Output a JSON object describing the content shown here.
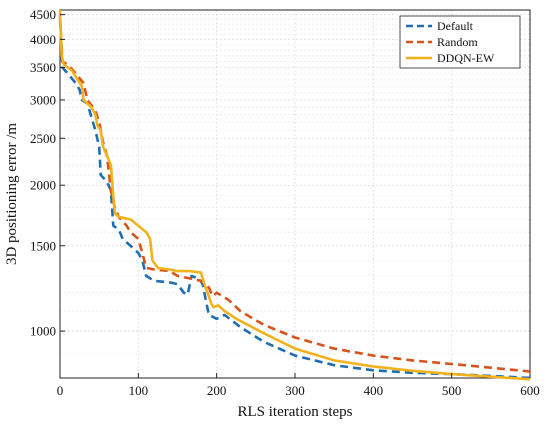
{
  "chart_data": {
    "type": "line",
    "title": "",
    "xlabel": "RLS iteration steps",
    "ylabel": "3D positioning error /m",
    "xlim": [
      0,
      600
    ],
    "ylim": [
      800,
      4600
    ],
    "yscale": "log",
    "grid": true,
    "legend_position": "top-right",
    "x_ticks": [
      0,
      100,
      200,
      300,
      400,
      500,
      600
    ],
    "x_tick_labels": [
      "0",
      "100",
      "200",
      "300",
      "400",
      "500",
      "600"
    ],
    "y_ticks": [
      1000,
      1500,
      2000,
      2500,
      3000,
      3500,
      4000,
      4500
    ],
    "y_tick_labels": [
      "1000",
      "1500",
      "2000",
      "2500",
      "3000",
      "3500",
      "4000",
      "4500"
    ],
    "series": [
      {
        "name": "Default",
        "color": "#1f6eb4",
        "style": "dashed",
        "points": [
          [
            0,
            4500
          ],
          [
            3,
            3500
          ],
          [
            10,
            3400
          ],
          [
            20,
            3250
          ],
          [
            25,
            3150
          ],
          [
            28,
            3000
          ],
          [
            35,
            2950
          ],
          [
            45,
            2600
          ],
          [
            50,
            2400
          ],
          [
            52,
            2100
          ],
          [
            58,
            2050
          ],
          [
            62,
            2000
          ],
          [
            65,
            1950
          ],
          [
            68,
            1650
          ],
          [
            75,
            1620
          ],
          [
            80,
            1550
          ],
          [
            90,
            1500
          ],
          [
            100,
            1450
          ],
          [
            105,
            1400
          ],
          [
            110,
            1300
          ],
          [
            120,
            1270
          ],
          [
            140,
            1260
          ],
          [
            150,
            1250
          ],
          [
            158,
            1200
          ],
          [
            163,
            1190
          ],
          [
            168,
            1300
          ],
          [
            178,
            1280
          ],
          [
            182,
            1250
          ],
          [
            190,
            1080
          ],
          [
            200,
            1060
          ],
          [
            210,
            1080
          ],
          [
            230,
            1020
          ],
          [
            260,
            950
          ],
          [
            300,
            890
          ],
          [
            350,
            850
          ],
          [
            400,
            830
          ],
          [
            450,
            820
          ],
          [
            500,
            815
          ],
          [
            550,
            808
          ],
          [
            600,
            800
          ]
        ]
      },
      {
        "name": "Random",
        "color": "#d9541a",
        "style": "dashed",
        "points": [
          [
            0,
            4400
          ],
          [
            3,
            3600
          ],
          [
            10,
            3550
          ],
          [
            20,
            3400
          ],
          [
            30,
            3250
          ],
          [
            35,
            3000
          ],
          [
            45,
            2850
          ],
          [
            50,
            2700
          ],
          [
            55,
            2450
          ],
          [
            60,
            2300
          ],
          [
            65,
            1950
          ],
          [
            70,
            1800
          ],
          [
            75,
            1720
          ],
          [
            85,
            1650
          ],
          [
            90,
            1600
          ],
          [
            100,
            1550
          ],
          [
            105,
            1450
          ],
          [
            110,
            1350
          ],
          [
            120,
            1340
          ],
          [
            140,
            1330
          ],
          [
            150,
            1300
          ],
          [
            160,
            1290
          ],
          [
            170,
            1280
          ],
          [
            180,
            1270
          ],
          [
            190,
            1230
          ],
          [
            195,
            1180
          ],
          [
            200,
            1200
          ],
          [
            215,
            1160
          ],
          [
            230,
            1100
          ],
          [
            260,
            1030
          ],
          [
            300,
            970
          ],
          [
            350,
            920
          ],
          [
            400,
            890
          ],
          [
            450,
            870
          ],
          [
            500,
            855
          ],
          [
            550,
            840
          ],
          [
            600,
            825
          ]
        ]
      },
      {
        "name": "DDQN-EW",
        "color": "#f2b21e",
        "style": "solid",
        "points": [
          [
            0,
            4600
          ],
          [
            2,
            3700
          ],
          [
            5,
            3550
          ],
          [
            15,
            3450
          ],
          [
            20,
            3350
          ],
          [
            28,
            3200
          ],
          [
            30,
            3000
          ],
          [
            40,
            2900
          ],
          [
            45,
            2800
          ],
          [
            48,
            2650
          ],
          [
            52,
            2600
          ],
          [
            55,
            2400
          ],
          [
            60,
            2300
          ],
          [
            65,
            2200
          ],
          [
            68,
            1900
          ],
          [
            70,
            1750
          ],
          [
            75,
            1720
          ],
          [
            90,
            1700
          ],
          [
            100,
            1650
          ],
          [
            110,
            1600
          ],
          [
            115,
            1550
          ],
          [
            118,
            1400
          ],
          [
            125,
            1350
          ],
          [
            140,
            1340
          ],
          [
            150,
            1330
          ],
          [
            165,
            1330
          ],
          [
            180,
            1320
          ],
          [
            185,
            1240
          ],
          [
            190,
            1180
          ],
          [
            193,
            1140
          ],
          [
            196,
            1120
          ],
          [
            202,
            1130
          ],
          [
            210,
            1100
          ],
          [
            225,
            1060
          ],
          [
            260,
            990
          ],
          [
            300,
            920
          ],
          [
            350,
            870
          ],
          [
            400,
            845
          ],
          [
            450,
            828
          ],
          [
            500,
            815
          ],
          [
            550,
            805
          ],
          [
            600,
            795
          ]
        ]
      }
    ]
  }
}
